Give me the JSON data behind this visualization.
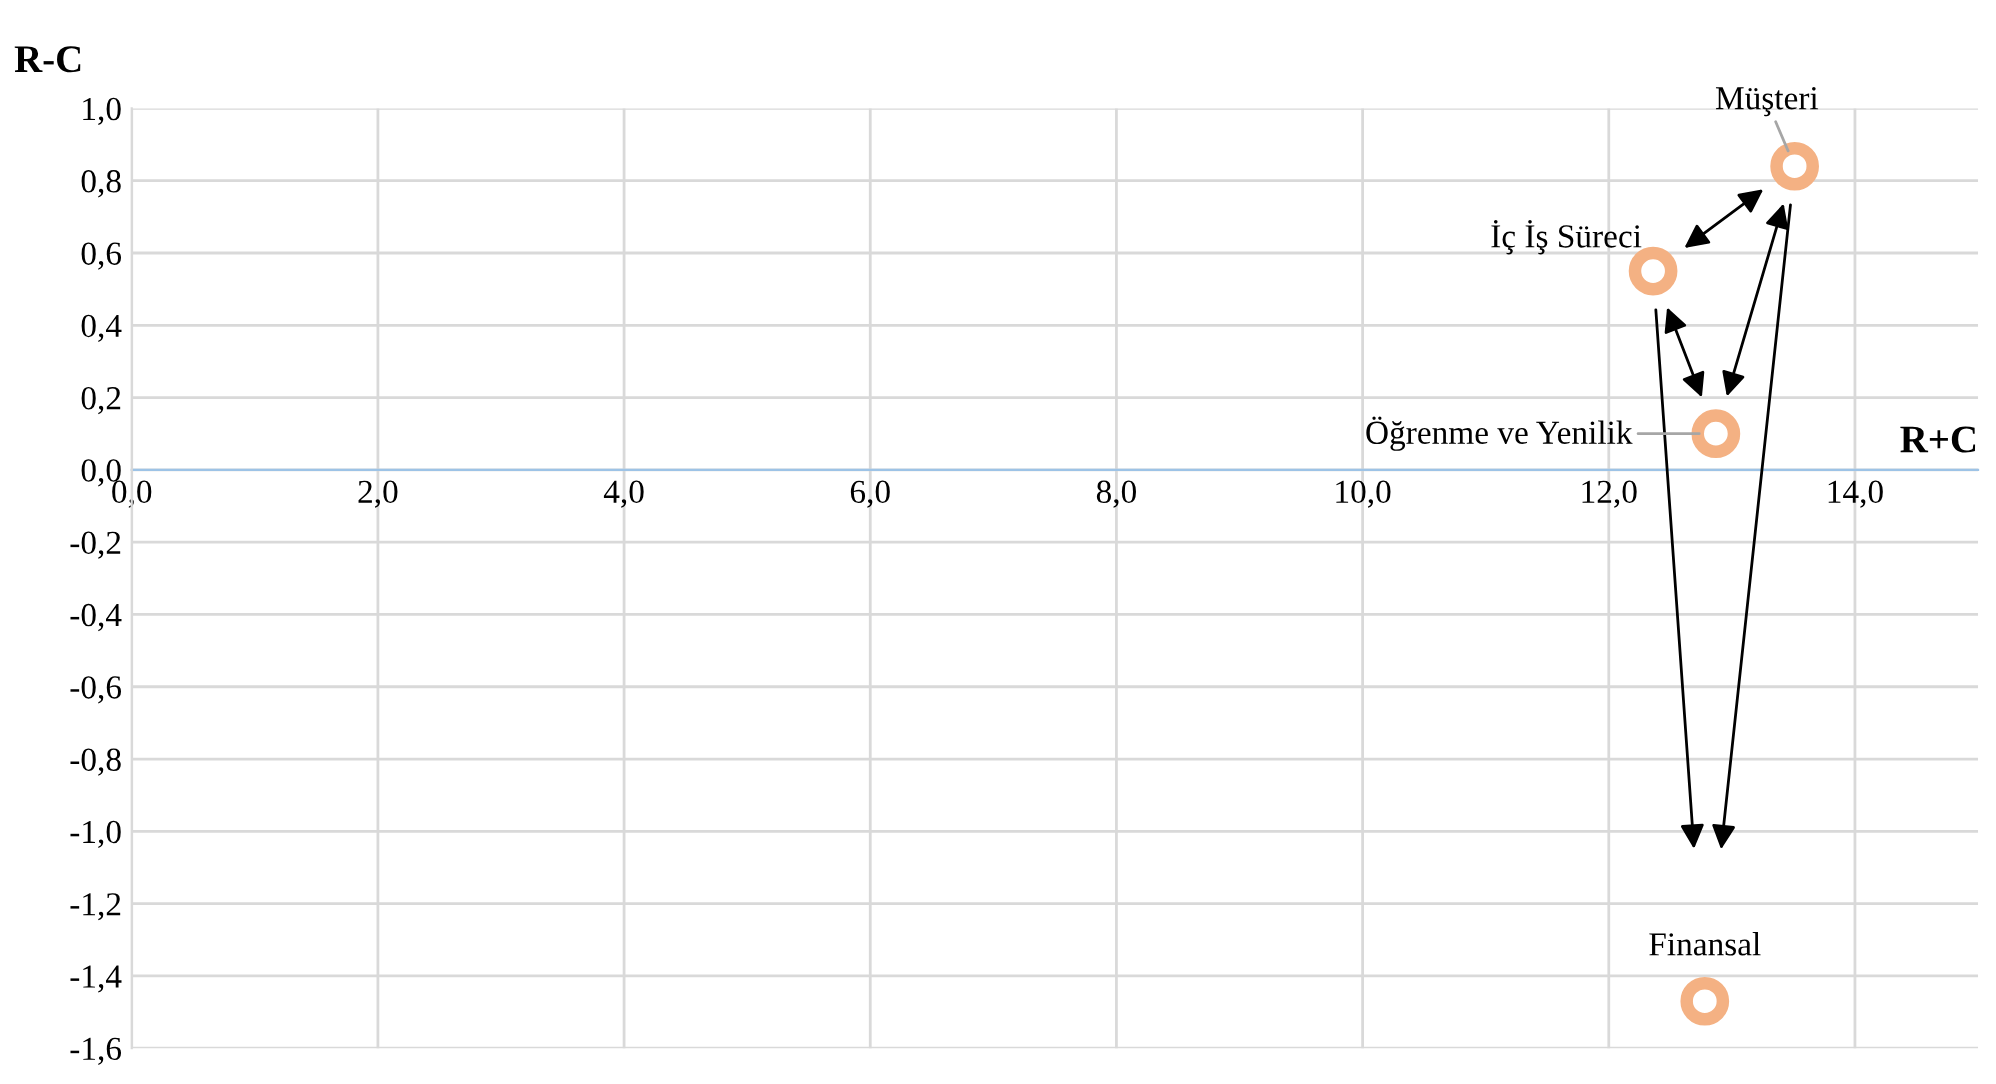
{
  "chart_data": {
    "type": "scatter",
    "xlabel": "R+C",
    "ylabel": "R-C",
    "series": [
      {
        "color": "#f4b183",
        "x": [
          13.51,
          12.36,
          12.87,
          12.78
        ],
        "values": [
          0.84,
          0.55,
          0.1,
          -1.47
        ]
      }
    ],
    "annotations": [
      {
        "text": "Müşteri",
        "x": 13.51,
        "y": 0.84
      },
      {
        "text": "İç İş Süreci",
        "x": 12.36,
        "y": 0.55
      },
      {
        "text": "Öğrenme ve Yenilik",
        "x": 12.87,
        "y": 0.1
      },
      {
        "text": "Finansal",
        "x": 12.78,
        "y": -1.47
      }
    ],
    "xlim": [
      0,
      15
    ],
    "ylim": [
      -1.6,
      1.0
    ],
    "xticks": [
      {
        "value": 0,
        "label": "0,0"
      },
      {
        "value": 2,
        "label": "2,0"
      },
      {
        "value": 4,
        "label": "4,0"
      },
      {
        "value": 6,
        "label": "6,0"
      },
      {
        "value": 8,
        "label": "8,0"
      },
      {
        "value": 10,
        "label": "10,0"
      },
      {
        "value": 12,
        "label": "12,0"
      },
      {
        "value": 14,
        "label": "14,0"
      }
    ],
    "yticks": [
      {
        "value": -1.6,
        "label": "-1,6"
      },
      {
        "value": -1.4,
        "label": "-1,4"
      },
      {
        "value": -1.2,
        "label": "-1,2"
      },
      {
        "value": -1.0,
        "label": "-1,0"
      },
      {
        "value": -0.8,
        "label": "-0,8"
      },
      {
        "value": -0.6,
        "label": "-0,6"
      },
      {
        "value": -0.4,
        "label": "-0,4"
      },
      {
        "value": -0.2,
        "label": "-0,2"
      },
      {
        "value": 0,
        "label": "0,0"
      },
      {
        "value": 0.2,
        "label": "0,2"
      },
      {
        "value": 0.4,
        "label": "0,4"
      },
      {
        "value": 0.6,
        "label": "0,6"
      },
      {
        "value": 0.8,
        "label": "0,8"
      },
      {
        "value": 1.0,
        "label": "1,0"
      }
    ],
    "grid": true,
    "marker": "circle"
  }
}
